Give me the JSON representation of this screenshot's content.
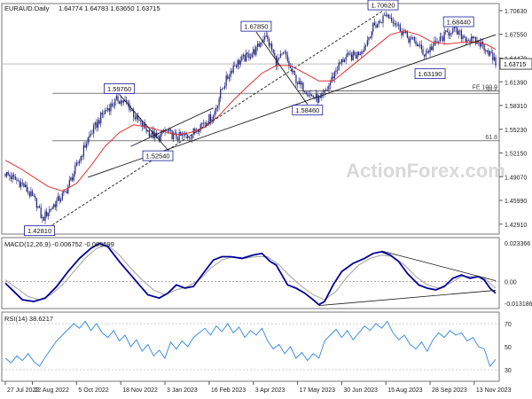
{
  "chart_data": [
    {
      "type": "candlestick",
      "panel": "price",
      "title": "EURAUD.Daily",
      "ohlc_header": "1.64774 1.64783 1.63650 1.63715",
      "y_ticks": [
        1.7063,
        1.6755,
        1.6447,
        1.6139,
        1.5831,
        1.5523,
        1.5215,
        1.4907,
        1.4599,
        1.4291
      ],
      "ylim": [
        1.4162,
        1.7155
      ],
      "last_price": "1.63715",
      "x_tick_labels": [
        "27 Jul 2022",
        "22 Aug 2022",
        "5 Oct 2022",
        "18 Nov 2022",
        "3 Jan 2023",
        "16 Feb 2023",
        "3 Apr 2023",
        "17 May 2023",
        "30 Jun 2023",
        "15 Aug 2023",
        "28 Sep 2023",
        "13 Nov 2023"
      ],
      "x_tick_index": [
        0,
        19,
        50,
        81,
        112,
        143,
        174,
        205,
        236,
        267,
        298,
        329
      ],
      "n_bars": 345,
      "close_path": [
        [
          0,
          1.495
        ],
        [
          12,
          1.481
        ],
        [
          22,
          1.456
        ],
        [
          26,
          1.435
        ],
        [
          30,
          1.446
        ],
        [
          42,
          1.47
        ],
        [
          48,
          1.495
        ],
        [
          58,
          1.54
        ],
        [
          68,
          1.571
        ],
        [
          72,
          1.58
        ],
        [
          79,
          1.591
        ],
        [
          86,
          1.585
        ],
        [
          92,
          1.565
        ],
        [
          100,
          1.55
        ],
        [
          107,
          1.54
        ],
        [
          112,
          1.55
        ],
        [
          120,
          1.542
        ],
        [
          130,
          1.545
        ],
        [
          138,
          1.56
        ],
        [
          146,
          1.57
        ],
        [
          152,
          1.605
        ],
        [
          160,
          1.635
        ],
        [
          168,
          1.645
        ],
        [
          176,
          1.655
        ],
        [
          182,
          1.675
        ],
        [
          186,
          1.66
        ],
        [
          190,
          1.64
        ],
        [
          196,
          1.65
        ],
        [
          200,
          1.63
        ],
        [
          206,
          1.61
        ],
        [
          210,
          1.605
        ],
        [
          215,
          1.595
        ],
        [
          221,
          1.59
        ],
        [
          226,
          1.605
        ],
        [
          232,
          1.63
        ],
        [
          238,
          1.645
        ],
        [
          246,
          1.648
        ],
        [
          252,
          1.66
        ],
        [
          258,
          1.685
        ],
        [
          263,
          1.692
        ],
        [
          267,
          1.702
        ],
        [
          272,
          1.695
        ],
        [
          278,
          1.68
        ],
        [
          283,
          1.67
        ],
        [
          288,
          1.665
        ],
        [
          294,
          1.65
        ],
        [
          300,
          1.66
        ],
        [
          306,
          1.67
        ],
        [
          313,
          1.682
        ],
        [
          319,
          1.675
        ],
        [
          326,
          1.668
        ],
        [
          332,
          1.665
        ],
        [
          337,
          1.658
        ],
        [
          341,
          1.648
        ],
        [
          344,
          1.6372
        ]
      ],
      "sma_path": [
        [
          0,
          1.512
        ],
        [
          10,
          1.502
        ],
        [
          20,
          1.49
        ],
        [
          30,
          1.478
        ],
        [
          40,
          1.472
        ],
        [
          50,
          1.482
        ],
        [
          60,
          1.505
        ],
        [
          70,
          1.53
        ],
        [
          80,
          1.548
        ],
        [
          90,
          1.558
        ],
        [
          100,
          1.555
        ],
        [
          110,
          1.55
        ],
        [
          120,
          1.545
        ],
        [
          130,
          1.548
        ],
        [
          140,
          1.555
        ],
        [
          150,
          1.57
        ],
        [
          160,
          1.59
        ],
        [
          170,
          1.608
        ],
        [
          180,
          1.625
        ],
        [
          190,
          1.635
        ],
        [
          200,
          1.635
        ],
        [
          210,
          1.625
        ],
        [
          220,
          1.615
        ],
        [
          230,
          1.615
        ],
        [
          240,
          1.63
        ],
        [
          250,
          1.645
        ],
        [
          260,
          1.66
        ],
        [
          270,
          1.675
        ],
        [
          280,
          1.68
        ],
        [
          290,
          1.675
        ],
        [
          300,
          1.665
        ],
        [
          310,
          1.663
        ],
        [
          320,
          1.665
        ],
        [
          330,
          1.666
        ],
        [
          338,
          1.662
        ],
        [
          344,
          1.656
        ]
      ],
      "price_labels": [
        {
          "text": "1.70620",
          "x": 265,
          "y": 1.7062
        },
        {
          "text": "1.67850",
          "x": 176,
          "y": 1.6785
        },
        {
          "text": "1.68440",
          "x": 318,
          "y": 1.6844
        },
        {
          "text": "1.63190",
          "x": 298,
          "y": 1.6319
        },
        {
          "text": "1.59760",
          "x": 80,
          "y": 1.5976
        },
        {
          "text": "1.58460",
          "x": 212,
          "y": 1.5846
        },
        {
          "text": "1.52540",
          "x": 107,
          "y": 1.5254
        },
        {
          "text": "1.42810",
          "x": 24,
          "y": 1.4281
        }
      ],
      "fib_lines": [
        {
          "text": "FE 100.0",
          "y": 1.602,
          "x0": 205
        },
        {
          "text": "38.2",
          "y": 1.599,
          "x0": 33
        },
        {
          "text": "61.8",
          "y": 1.5373,
          "x0": 33
        }
      ],
      "trendlines": [
        {
          "from": [
            58,
            1.49
          ],
          "to": [
            344,
            1.675
          ],
          "style": "solid"
        },
        {
          "from": [
            33,
            1.4281
          ],
          "to": [
            265,
            1.7062
          ],
          "style": "dashed"
        },
        {
          "from": [
            176,
            1.6785
          ],
          "to": [
            212,
            1.5846
          ],
          "style": "solid"
        },
        {
          "from": [
            80,
            1.5976
          ],
          "to": [
            114,
            1.5254
          ],
          "style": "solid"
        },
        {
          "from": [
            88,
            1.53
          ],
          "to": [
            146,
            1.58
          ],
          "style": "solid"
        }
      ],
      "watermark": "ActionForex.com",
      "colors": {
        "candle": "#1f1f7a",
        "sma": "#e53030",
        "trend": "#1a1a1a",
        "label_border": "#1a1a99"
      }
    },
    {
      "type": "line",
      "panel": "macd",
      "title": "MACD(12,26,9) -0.006752 -0.003599",
      "y_ticks": [
        "0.023366",
        "0.00",
        "-0.013186"
      ],
      "y_tick_values": [
        0.023366,
        0.0,
        -0.013186
      ],
      "ylim": [
        -0.0163,
        0.0265
      ],
      "macd_path": [
        [
          0,
          -0.001
        ],
        [
          6,
          -0.006
        ],
        [
          12,
          -0.011
        ],
        [
          20,
          -0.012
        ],
        [
          28,
          -0.01
        ],
        [
          36,
          -0.003
        ],
        [
          44,
          0.006
        ],
        [
          52,
          0.014
        ],
        [
          60,
          0.02
        ],
        [
          66,
          0.023
        ],
        [
          72,
          0.021
        ],
        [
          80,
          0.012
        ],
        [
          88,
          0.004
        ],
        [
          94,
          -0.002
        ],
        [
          100,
          -0.008
        ],
        [
          108,
          -0.01
        ],
        [
          114,
          -0.007
        ],
        [
          120,
          -0.002
        ],
        [
          126,
          -0.004
        ],
        [
          132,
          -0.003
        ],
        [
          138,
          0.004
        ],
        [
          146,
          0.013
        ],
        [
          152,
          0.015
        ],
        [
          158,
          0.015
        ],
        [
          166,
          0.014
        ],
        [
          174,
          0.016
        ],
        [
          180,
          0.017
        ],
        [
          186,
          0.012
        ],
        [
          190,
          0.01
        ],
        [
          194,
          0.004
        ],
        [
          198,
          -0.002
        ],
        [
          204,
          -0.004
        ],
        [
          210,
          -0.007
        ],
        [
          216,
          -0.011
        ],
        [
          220,
          -0.014
        ],
        [
          224,
          -0.012
        ],
        [
          230,
          -0.002
        ],
        [
          236,
          0.006
        ],
        [
          244,
          0.011
        ],
        [
          252,
          0.014
        ],
        [
          258,
          0.017
        ],
        [
          264,
          0.018
        ],
        [
          270,
          0.016
        ],
        [
          276,
          0.012
        ],
        [
          282,
          0.005
        ],
        [
          290,
          -0.002
        ],
        [
          296,
          -0.004
        ],
        [
          302,
          -0.005
        ],
        [
          308,
          -0.003
        ],
        [
          314,
          0.002
        ],
        [
          320,
          0.004
        ],
        [
          326,
          0.002
        ],
        [
          332,
          0.003
        ],
        [
          336,
          0.001
        ],
        [
          340,
          -0.004
        ],
        [
          344,
          -0.007
        ]
      ],
      "signal_path": [
        [
          0,
          0.001
        ],
        [
          8,
          -0.004
        ],
        [
          16,
          -0.009
        ],
        [
          24,
          -0.011
        ],
        [
          32,
          -0.008
        ],
        [
          40,
          -0.002
        ],
        [
          48,
          0.006
        ],
        [
          56,
          0.014
        ],
        [
          64,
          0.02
        ],
        [
          72,
          0.022
        ],
        [
          80,
          0.016
        ],
        [
          88,
          0.008
        ],
        [
          96,
          0.001
        ],
        [
          104,
          -0.005
        ],
        [
          112,
          -0.008
        ],
        [
          120,
          -0.005
        ],
        [
          128,
          -0.003
        ],
        [
          136,
          0.001
        ],
        [
          144,
          0.008
        ],
        [
          152,
          0.013
        ],
        [
          160,
          0.015
        ],
        [
          168,
          0.014
        ],
        [
          176,
          0.015
        ],
        [
          184,
          0.015
        ],
        [
          192,
          0.01
        ],
        [
          200,
          0.003
        ],
        [
          208,
          -0.003
        ],
        [
          216,
          -0.008
        ],
        [
          224,
          -0.011
        ],
        [
          232,
          -0.006
        ],
        [
          240,
          0.003
        ],
        [
          248,
          0.01
        ],
        [
          256,
          0.014
        ],
        [
          264,
          0.016
        ],
        [
          272,
          0.015
        ],
        [
          280,
          0.01
        ],
        [
          288,
          0.003
        ],
        [
          296,
          -0.002
        ],
        [
          304,
          -0.004
        ],
        [
          312,
          -0.001
        ],
        [
          320,
          0.003
        ],
        [
          328,
          0.003
        ],
        [
          336,
          0.002
        ],
        [
          344,
          -0.004
        ]
      ],
      "trendlines": [
        {
          "from": [
            220,
            -0.0145
          ],
          "to": [
            344,
            -0.0053
          ]
        },
        {
          "from": [
            264,
            0.0185
          ],
          "to": [
            344,
            0.0005
          ]
        }
      ],
      "colors": {
        "macd": "#000099",
        "signal": "#a0a0a0",
        "trend": "#1a1a1a"
      }
    },
    {
      "type": "line",
      "panel": "rsi",
      "title": "RSI(14) 38.6217",
      "y_ticks": [
        "70",
        "50",
        "30"
      ],
      "y_tick_values": [
        70,
        50,
        30
      ],
      "ylim": [
        20,
        80
      ],
      "rsi_path": [
        [
          0,
          40
        ],
        [
          4,
          36
        ],
        [
          8,
          42
        ],
        [
          12,
          38
        ],
        [
          16,
          44
        ],
        [
          20,
          37
        ],
        [
          24,
          33
        ],
        [
          28,
          41
        ],
        [
          32,
          48
        ],
        [
          36,
          55
        ],
        [
          40,
          60
        ],
        [
          44,
          65
        ],
        [
          48,
          70
        ],
        [
          52,
          66
        ],
        [
          56,
          72
        ],
        [
          60,
          64
        ],
        [
          64,
          70
        ],
        [
          68,
          62
        ],
        [
          72,
          58
        ],
        [
          76,
          64
        ],
        [
          80,
          55
        ],
        [
          84,
          60
        ],
        [
          88,
          50
        ],
        [
          92,
          56
        ],
        [
          96,
          46
        ],
        [
          100,
          52
        ],
        [
          104,
          42
        ],
        [
          108,
          47
        ],
        [
          112,
          40
        ],
        [
          116,
          54
        ],
        [
          120,
          48
        ],
        [
          124,
          55
        ],
        [
          128,
          50
        ],
        [
          132,
          58
        ],
        [
          136,
          62
        ],
        [
          140,
          66
        ],
        [
          144,
          60
        ],
        [
          148,
          68
        ],
        [
          152,
          63
        ],
        [
          156,
          70
        ],
        [
          160,
          62
        ],
        [
          164,
          67
        ],
        [
          168,
          58
        ],
        [
          172,
          64
        ],
        [
          176,
          60
        ],
        [
          180,
          66
        ],
        [
          184,
          55
        ],
        [
          188,
          48
        ],
        [
          192,
          52
        ],
        [
          196,
          44
        ],
        [
          200,
          50
        ],
        [
          204,
          40
        ],
        [
          208,
          45
        ],
        [
          212,
          38
        ],
        [
          216,
          44
        ],
        [
          220,
          40
        ],
        [
          224,
          55
        ],
        [
          228,
          60
        ],
        [
          232,
          65
        ],
        [
          236,
          58
        ],
        [
          240,
          64
        ],
        [
          244,
          56
        ],
        [
          248,
          62
        ],
        [
          252,
          68
        ],
        [
          256,
          64
        ],
        [
          260,
          70
        ],
        [
          264,
          66
        ],
        [
          268,
          72
        ],
        [
          272,
          62
        ],
        [
          276,
          56
        ],
        [
          280,
          60
        ],
        [
          284,
          52
        ],
        [
          288,
          48
        ],
        [
          292,
          54
        ],
        [
          296,
          46
        ],
        [
          300,
          56
        ],
        [
          304,
          62
        ],
        [
          308,
          58
        ],
        [
          312,
          64
        ],
        [
          316,
          60
        ],
        [
          320,
          62
        ],
        [
          324,
          55
        ],
        [
          328,
          58
        ],
        [
          332,
          50
        ],
        [
          336,
          48
        ],
        [
          340,
          33
        ],
        [
          344,
          39
        ]
      ],
      "colors": {
        "rsi": "#2e86de"
      }
    }
  ]
}
